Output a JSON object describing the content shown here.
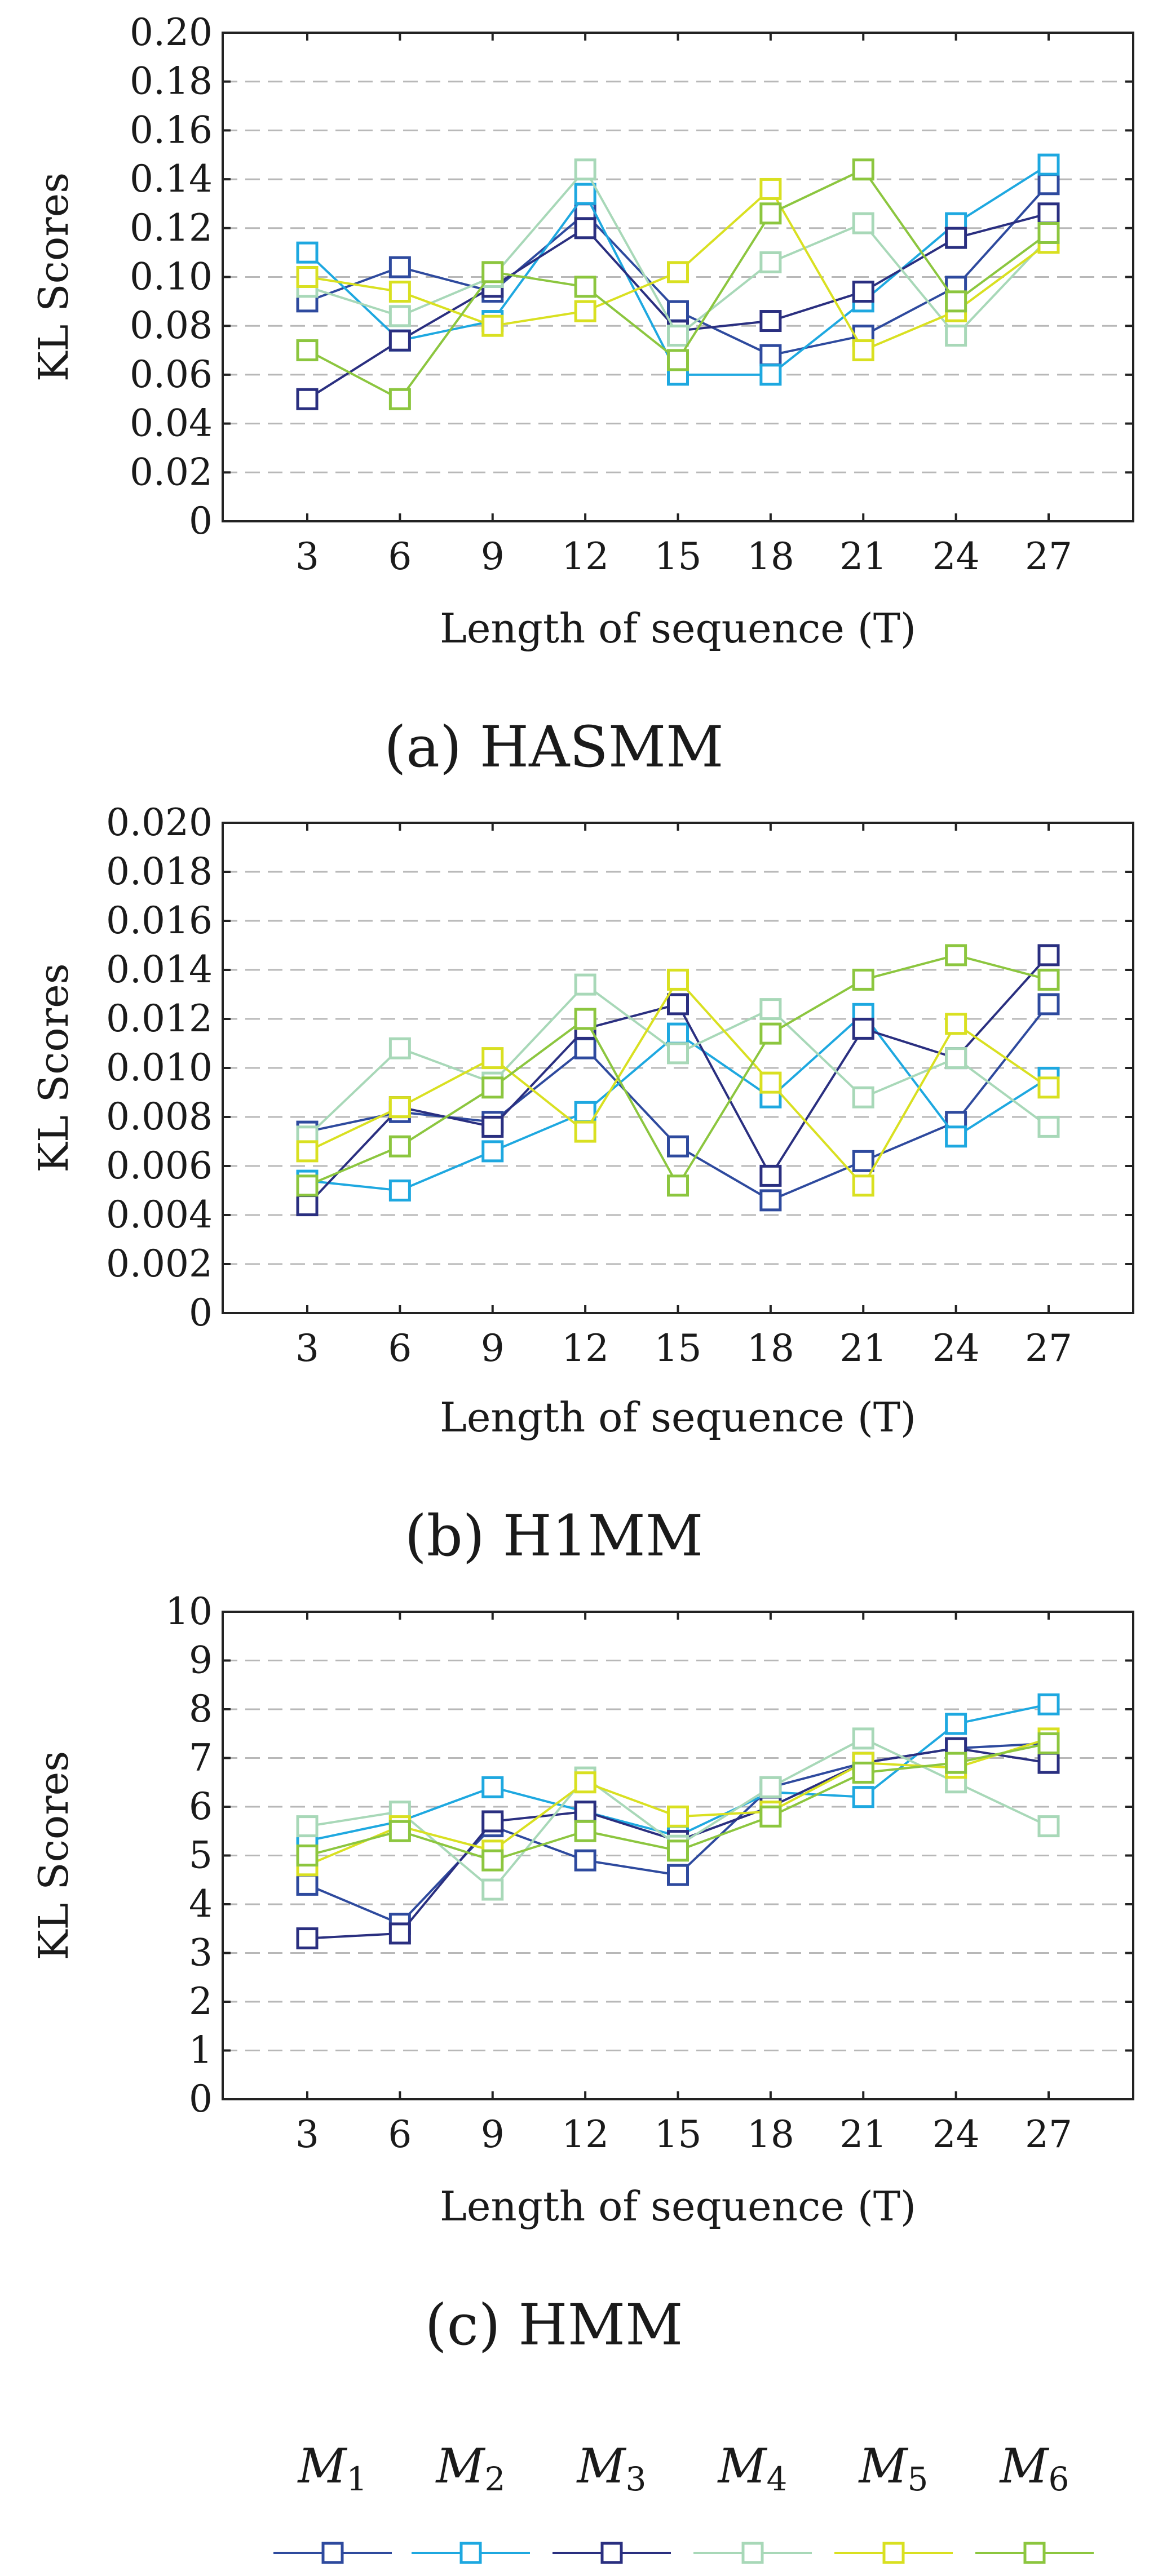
{
  "legend": {
    "entries": [
      {
        "base": "M",
        "sub": "1",
        "color": "#2e4a9e"
      },
      {
        "base": "M",
        "sub": "2",
        "color": "#1ea8e0"
      },
      {
        "base": "M",
        "sub": "3",
        "color": "#2a2f80"
      },
      {
        "base": "M",
        "sub": "4",
        "color": "#a8d8b8"
      },
      {
        "base": "M",
        "sub": "5",
        "color": "#d9e021"
      },
      {
        "base": "M",
        "sub": "6",
        "color": "#8cc63f"
      }
    ]
  },
  "chart_data": [
    {
      "type": "line",
      "caption": "(a) HASMM",
      "xlabel": "Length of sequence (T)",
      "ylabel": "KL Scores",
      "x": [
        3,
        6,
        9,
        12,
        15,
        18,
        21,
        24,
        27
      ],
      "x_ticks": [
        "3",
        "6",
        "9",
        "12",
        "15",
        "18",
        "21",
        "24",
        "27"
      ],
      "ylim": [
        0,
        0.2
      ],
      "y_ticks": [
        "0",
        "0.02",
        "0.04",
        "0.06",
        "0.08",
        "0.10",
        "0.12",
        "0.14",
        "0.16",
        "0.18",
        "0.20"
      ],
      "series": [
        {
          "name": "M1",
          "values": [
            0.09,
            0.104,
            0.094,
            0.126,
            0.086,
            0.068,
            0.076,
            0.096,
            0.138
          ]
        },
        {
          "name": "M2",
          "values": [
            0.11,
            0.074,
            0.082,
            0.134,
            0.06,
            0.06,
            0.09,
            0.122,
            0.146
          ]
        },
        {
          "name": "M3",
          "values": [
            0.05,
            0.074,
            0.096,
            0.12,
            0.078,
            0.082,
            0.094,
            0.116,
            0.126
          ]
        },
        {
          "name": "M4",
          "values": [
            0.096,
            0.084,
            0.1,
            0.144,
            0.076,
            0.106,
            0.122,
            0.076,
            0.116
          ]
        },
        {
          "name": "M5",
          "values": [
            0.1,
            0.094,
            0.08,
            0.086,
            0.102,
            0.136,
            0.07,
            0.086,
            0.114
          ]
        },
        {
          "name": "M6",
          "values": [
            0.07,
            0.05,
            0.102,
            0.096,
            0.066,
            0.126,
            0.144,
            0.09,
            0.118
          ]
        }
      ]
    },
    {
      "type": "line",
      "caption": "(b) H1MM",
      "xlabel": "Length of sequence (T)",
      "ylabel": "KL Scores",
      "x": [
        3,
        6,
        9,
        12,
        15,
        18,
        21,
        24,
        27
      ],
      "x_ticks": [
        "3",
        "6",
        "9",
        "12",
        "15",
        "18",
        "21",
        "24",
        "27"
      ],
      "ylim": [
        0,
        0.02
      ],
      "y_ticks": [
        "0",
        "0.002",
        "0.004",
        "0.006",
        "0.008",
        "0.010",
        "0.012",
        "0.014",
        "0.016",
        "0.018",
        "0.020"
      ],
      "series": [
        {
          "name": "M1",
          "values": [
            0.0074,
            0.0082,
            0.0078,
            0.0108,
            0.0068,
            0.0046,
            0.0062,
            0.0078,
            0.0126
          ]
        },
        {
          "name": "M2",
          "values": [
            0.0054,
            0.005,
            0.0066,
            0.0082,
            0.0114,
            0.0088,
            0.0122,
            0.0072,
            0.0096
          ]
        },
        {
          "name": "M3",
          "values": [
            0.0044,
            0.0084,
            0.0076,
            0.0116,
            0.0126,
            0.0056,
            0.0116,
            0.0104,
            0.0146
          ]
        },
        {
          "name": "M4",
          "values": [
            0.0072,
            0.0108,
            0.0094,
            0.0134,
            0.0106,
            0.0124,
            0.0088,
            0.0104,
            0.0076
          ]
        },
        {
          "name": "M5",
          "values": [
            0.0066,
            0.0084,
            0.0104,
            0.0074,
            0.0136,
            0.0094,
            0.0052,
            0.0118,
            0.0092
          ]
        },
        {
          "name": "M6",
          "values": [
            0.0052,
            0.0068,
            0.0092,
            0.012,
            0.0052,
            0.0114,
            0.0136,
            0.0146,
            0.0136
          ]
        }
      ]
    },
    {
      "type": "line",
      "caption": "(c) HMM",
      "xlabel": "Length of sequence (T)",
      "ylabel": "KL Scores",
      "x": [
        3,
        6,
        9,
        12,
        15,
        18,
        21,
        24,
        27
      ],
      "x_ticks": [
        "3",
        "6",
        "9",
        "12",
        "15",
        "18",
        "21",
        "24",
        "27"
      ],
      "ylim": [
        0,
        10
      ],
      "y_ticks": [
        "0",
        "1",
        "2",
        "3",
        "4",
        "5",
        "6",
        "7",
        "8",
        "9",
        "10"
      ],
      "series": [
        {
          "name": "M1",
          "values": [
            4.4,
            3.6,
            5.6,
            4.9,
            4.6,
            6.4,
            6.9,
            7.2,
            7.3
          ]
        },
        {
          "name": "M2",
          "values": [
            5.3,
            5.7,
            6.4,
            5.9,
            5.4,
            6.3,
            6.2,
            7.7,
            8.1
          ]
        },
        {
          "name": "M3",
          "values": [
            3.3,
            3.4,
            5.7,
            5.9,
            5.3,
            6.0,
            6.9,
            7.2,
            6.9
          ]
        },
        {
          "name": "M4",
          "values": [
            5.6,
            5.9,
            4.3,
            6.6,
            5.2,
            6.4,
            7.4,
            6.5,
            5.6
          ]
        },
        {
          "name": "M5",
          "values": [
            4.8,
            5.6,
            5.1,
            6.5,
            5.8,
            5.9,
            6.9,
            6.8,
            7.4
          ]
        },
        {
          "name": "M6",
          "values": [
            5.0,
            5.5,
            4.9,
            5.5,
            5.1,
            5.8,
            6.7,
            6.9,
            7.3
          ]
        }
      ]
    }
  ]
}
